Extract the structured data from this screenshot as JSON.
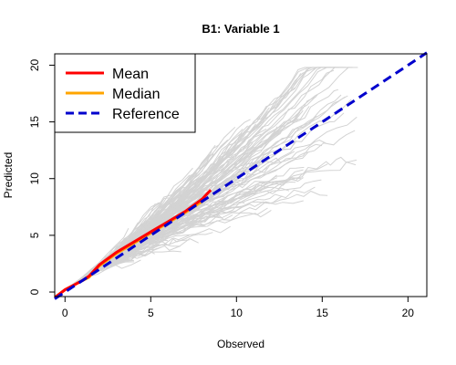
{
  "chart_data": {
    "type": "line",
    "title": "B1: Variable 1",
    "xlabel": "Observed",
    "ylabel": "Predicted",
    "xlim": [
      -0.6,
      21.1
    ],
    "ylim": [
      -0.4,
      21.0
    ],
    "x_ticks": [
      0,
      5,
      10,
      15,
      20
    ],
    "y_ticks": [
      0,
      5,
      10,
      15,
      20
    ],
    "grid": false,
    "legend_position": "top-left",
    "legend": [
      {
        "label": "Mean",
        "color": "#ff0000",
        "style": "solid"
      },
      {
        "label": "Median",
        "color": "#ffa500",
        "style": "solid"
      },
      {
        "label": "Reference",
        "color": "#0000cd",
        "style": "dashed"
      }
    ],
    "series": [
      {
        "name": "Mean",
        "color": "#ff0000",
        "x": [
          -0.6,
          0,
          0.5,
          1.0,
          1.4,
          2.0,
          3.0,
          4.0,
          5.0,
          6.0,
          7.0,
          8.0,
          8.5
        ],
        "y": [
          -0.5,
          0.2,
          0.6,
          1.0,
          1.4,
          2.4,
          3.5,
          4.4,
          5.3,
          6.2,
          7.1,
          8.2,
          9.0
        ]
      },
      {
        "name": "Median",
        "color": "#ffa500",
        "x": [
          -0.6,
          0,
          0.5,
          1.0,
          1.4,
          2.0,
          3.0,
          4.0,
          5.0,
          6.0,
          7.0,
          8.0
        ],
        "y": [
          -0.5,
          0.2,
          0.6,
          1.0,
          1.3,
          2.3,
          3.4,
          4.3,
          5.2,
          6.1,
          7.0,
          8.0
        ]
      },
      {
        "name": "Reference",
        "color": "#0000cd",
        "x": [
          -0.6,
          21.1
        ],
        "y": [
          -0.6,
          21.1
        ]
      }
    ],
    "background_lines_color": "#d3d3d3"
  }
}
